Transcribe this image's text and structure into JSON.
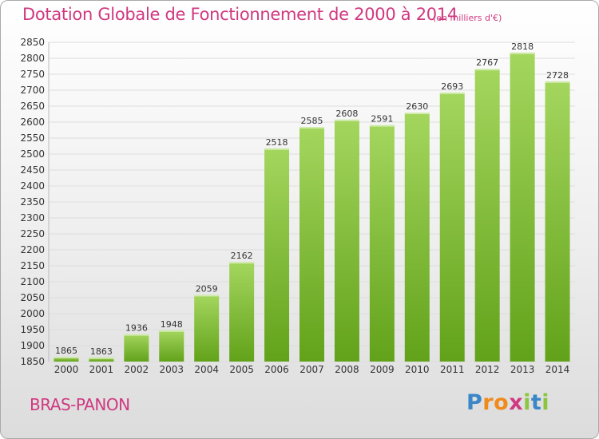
{
  "chart_data": {
    "type": "bar",
    "title": "Dotation Globale de Fonctionnement de 2000 à 2014",
    "subtitle": "(en milliers d'€)",
    "categories": [
      "2000",
      "2001",
      "2002",
      "2003",
      "2004",
      "2005",
      "2006",
      "2007",
      "2008",
      "2009",
      "2010",
      "2011",
      "2012",
      "2013",
      "2014"
    ],
    "values": [
      1865,
      1863,
      1936,
      1948,
      2059,
      2162,
      2518,
      2585,
      2608,
      2591,
      2630,
      2693,
      2767,
      2818,
      2728
    ],
    "ylim": [
      1850,
      2850
    ],
    "yticks": [
      1850,
      1900,
      1950,
      2000,
      2050,
      2100,
      2150,
      2200,
      2250,
      2300,
      2350,
      2400,
      2450,
      2500,
      2550,
      2600,
      2650,
      2700,
      2750,
      2800,
      2850
    ],
    "grid": true,
    "colors": {
      "bar_light": "#a4d65e",
      "bar_dark": "#62a21a",
      "grid": "#dddddd",
      "text": "#333333",
      "accent": "#d03880"
    }
  },
  "commune": "BRAS-PANON",
  "logo": {
    "letters": [
      "P",
      "r",
      "o",
      "x",
      "i",
      "t",
      "i"
    ],
    "colors": [
      "#3a86c8",
      "#f08a1c",
      "#f08a1c",
      "#d03880",
      "#8cc63f",
      "#3a86c8",
      "#8cc63f"
    ]
  }
}
